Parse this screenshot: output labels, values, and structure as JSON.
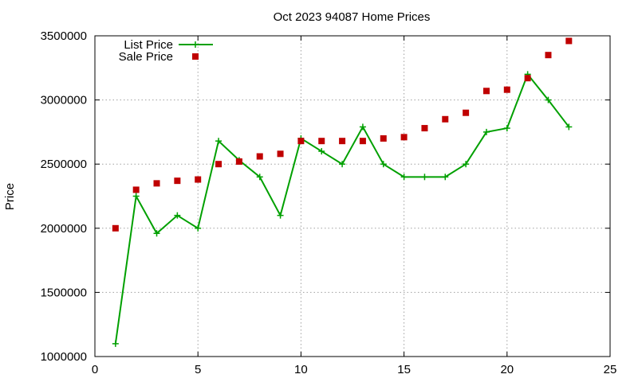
{
  "chart_data": {
    "type": "line",
    "title": "Oct 2023 94087 Home Prices",
    "xlabel": "",
    "ylabel": "Price",
    "xlim": [
      0,
      25
    ],
    "ylim": [
      1000000,
      3500000
    ],
    "x_ticks": [
      "0",
      "5",
      "10",
      "15",
      "20",
      "25"
    ],
    "y_ticks": [
      "1000000",
      "1500000",
      "2000000",
      "2500000",
      "3000000",
      "3500000"
    ],
    "grid": true,
    "legend_position": "top-left",
    "x": [
      1,
      2,
      3,
      4,
      5,
      6,
      7,
      8,
      9,
      10,
      11,
      12,
      13,
      14,
      15,
      16,
      17,
      18,
      19,
      20,
      21,
      22,
      23
    ],
    "series": [
      {
        "name": "List Price",
        "style": "line-with-cross-markers",
        "color": "#00a000",
        "values": [
          1100000,
          2250000,
          1960000,
          2100000,
          2000000,
          2680000,
          2530000,
          2400000,
          2100000,
          2700000,
          2600000,
          2500000,
          2790000,
          2500000,
          2400000,
          2400000,
          2400000,
          2500000,
          2750000,
          2780000,
          3200000,
          3000000,
          2790000
        ]
      },
      {
        "name": "Sale Price",
        "style": "square-markers",
        "color": "#c00000",
        "values": [
          2000000,
          2300000,
          2350000,
          2370000,
          2380000,
          2500000,
          2520000,
          2560000,
          2580000,
          2680000,
          2680000,
          2680000,
          2680000,
          2700000,
          2710000,
          2780000,
          2850000,
          2900000,
          3070000,
          3080000,
          3170000,
          3350000,
          3460000
        ]
      }
    ]
  }
}
